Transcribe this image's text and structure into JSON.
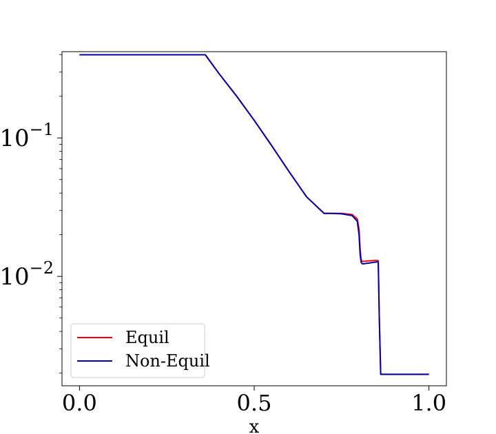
{
  "chart_data": {
    "type": "line",
    "xlabel": "x",
    "ylabel": "",
    "xlim": [
      -0.05,
      1.05
    ],
    "ylim": [
      0.00162,
      0.42
    ],
    "yscale": "log",
    "grid": false,
    "legend_placement": "bottom-left",
    "x_ticks": [
      0.0,
      0.5,
      1.0
    ],
    "x_tick_labels": [
      "0.0",
      "0.5",
      "1.0"
    ],
    "y_ticks": [
      {
        "value": 0.1,
        "base": "10",
        "exponent": "−1"
      },
      {
        "value": 0.01,
        "base": "10",
        "exponent": "−2"
      }
    ],
    "series": [
      {
        "name": "Equil",
        "color": "#ff0000",
        "x": [
          0.0,
          0.1,
          0.2,
          0.3,
          0.36,
          0.4,
          0.45,
          0.5,
          0.55,
          0.6,
          0.65,
          0.7,
          0.72,
          0.75,
          0.78,
          0.795,
          0.8,
          0.803,
          0.806,
          0.81,
          0.82,
          0.84,
          0.85,
          0.855,
          0.858,
          0.862,
          0.9,
          0.95,
          1.0
        ],
        "y": [
          0.399,
          0.399,
          0.399,
          0.399,
          0.399,
          0.29,
          0.2,
          0.134,
          0.088,
          0.057,
          0.0375,
          0.0285,
          0.0285,
          0.0285,
          0.028,
          0.026,
          0.022,
          0.016,
          0.0132,
          0.0128,
          0.0129,
          0.013,
          0.013,
          0.013,
          0.005,
          0.00196,
          0.00196,
          0.00196,
          0.00196
        ]
      },
      {
        "name": "Non-Equil",
        "color": "#0000aa",
        "x": [
          0.0,
          0.1,
          0.2,
          0.3,
          0.36,
          0.4,
          0.45,
          0.5,
          0.55,
          0.6,
          0.65,
          0.7,
          0.72,
          0.75,
          0.78,
          0.795,
          0.8,
          0.803,
          0.806,
          0.81,
          0.82,
          0.84,
          0.85,
          0.855,
          0.858,
          0.862,
          0.9,
          0.95,
          1.0
        ],
        "y": [
          0.399,
          0.399,
          0.399,
          0.399,
          0.399,
          0.29,
          0.2,
          0.134,
          0.088,
          0.057,
          0.0375,
          0.0285,
          0.0285,
          0.0283,
          0.0275,
          0.025,
          0.02,
          0.0145,
          0.0126,
          0.0123,
          0.0124,
          0.0126,
          0.0127,
          0.0127,
          0.005,
          0.00196,
          0.00196,
          0.00196,
          0.00196
        ]
      }
    ]
  }
}
